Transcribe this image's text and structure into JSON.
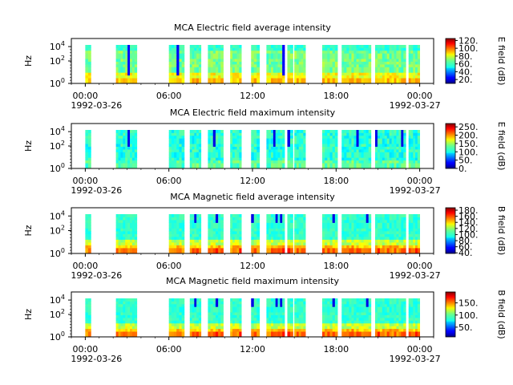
{
  "chart_data": [
    {
      "type": "heatmap",
      "title": "MCA  Electric field average intensity",
      "ylabel": "Hz",
      "y_ticks": [
        "10^0",
        "10^2",
        "10^4"
      ],
      "x_ticks": [
        "00:00",
        "06:00",
        "12:00",
        "18:00",
        "00:00"
      ],
      "x_start_date": "1992-03-26",
      "x_end_date": "1992-03-27",
      "colorbar_label": "E field (dB)",
      "colorbar_ticks": [
        "20.",
        "40.",
        "60.",
        "80.",
        "100.",
        "120."
      ],
      "colorbar_range": [
        10,
        125
      ],
      "intensity_profile": "hf-low-mid",
      "data_segments_hours": [
        [
          0.0,
          0.4
        ],
        [
          2.2,
          3.7
        ],
        [
          6.0,
          7.1
        ],
        [
          7.5,
          8.3
        ],
        [
          8.8,
          9.9
        ],
        [
          10.4,
          11.2
        ],
        [
          11.9,
          12.5
        ],
        [
          13.0,
          14.3
        ],
        [
          14.5,
          14.9
        ],
        [
          15.0,
          15.8
        ],
        [
          17.0,
          18.1
        ],
        [
          18.4,
          20.5
        ],
        [
          20.8,
          23.0
        ],
        [
          23.2,
          24.0
        ]
      ]
    },
    {
      "type": "heatmap",
      "title": "MCA  Electric field maximum intensity",
      "ylabel": "Hz",
      "y_ticks": [
        "10^0",
        "10^2",
        "10^4"
      ],
      "x_ticks": [
        "00:00",
        "06:00",
        "12:00",
        "18:00",
        "00:00"
      ],
      "x_start_date": "1992-03-26",
      "x_end_date": "1992-03-27",
      "colorbar_label": "E field (dB)",
      "colorbar_ticks": [
        "0.",
        "50.",
        "100.",
        "150.",
        "200.",
        "250."
      ],
      "colorbar_range": [
        0,
        270
      ],
      "intensity_profile": "hf-max",
      "data_segments_hours": [
        [
          0.0,
          0.4
        ],
        [
          2.2,
          3.7
        ],
        [
          6.0,
          7.1
        ],
        [
          7.5,
          8.3
        ],
        [
          8.8,
          9.9
        ],
        [
          10.4,
          11.2
        ],
        [
          11.9,
          12.5
        ],
        [
          13.0,
          14.3
        ],
        [
          14.5,
          14.9
        ],
        [
          15.0,
          15.8
        ],
        [
          17.0,
          18.1
        ],
        [
          18.4,
          20.5
        ],
        [
          20.8,
          23.0
        ],
        [
          23.2,
          24.0
        ]
      ]
    },
    {
      "type": "heatmap",
      "title": "MCA  Magnetic field average intensity",
      "ylabel": "Hz",
      "y_ticks": [
        "10^0",
        "10^2",
        "10^4"
      ],
      "x_ticks": [
        "00:00",
        "06:00",
        "12:00",
        "18:00",
        "00:00"
      ],
      "x_start_date": "1992-03-26",
      "x_end_date": "1992-03-27",
      "colorbar_label": "B field (dB)",
      "colorbar_ticks": [
        "40.",
        "60.",
        "80.",
        "100.",
        "120.",
        "140.",
        "160.",
        "180."
      ],
      "colorbar_range": [
        38,
        188
      ],
      "intensity_profile": "low-freq-strong",
      "data_segments_hours": [
        [
          0.0,
          0.4
        ],
        [
          2.2,
          3.7
        ],
        [
          6.0,
          7.1
        ],
        [
          7.5,
          8.3
        ],
        [
          8.8,
          9.9
        ],
        [
          10.4,
          11.2
        ],
        [
          11.9,
          12.5
        ],
        [
          13.0,
          14.3
        ],
        [
          14.5,
          14.9
        ],
        [
          15.0,
          15.8
        ],
        [
          17.0,
          18.1
        ],
        [
          18.4,
          20.5
        ],
        [
          20.8,
          23.0
        ],
        [
          23.2,
          24.0
        ]
      ]
    },
    {
      "type": "heatmap",
      "title": "MCA  Magnetic field maximum intensity",
      "ylabel": "Hz",
      "y_ticks": [
        "10^0",
        "10^2",
        "10^4"
      ],
      "x_ticks": [
        "00:00",
        "06:00",
        "12:00",
        "18:00",
        "00:00"
      ],
      "x_start_date": "1992-03-26",
      "x_end_date": "1992-03-27",
      "colorbar_label": "B field (dB)",
      "colorbar_ticks": [
        "50.",
        "100.",
        "150."
      ],
      "colorbar_range": [
        10,
        195
      ],
      "intensity_profile": "low-freq-strong",
      "data_segments_hours": [
        [
          0.0,
          0.4
        ],
        [
          2.2,
          3.7
        ],
        [
          6.0,
          7.1
        ],
        [
          7.5,
          8.3
        ],
        [
          8.8,
          9.9
        ],
        [
          10.4,
          11.2
        ],
        [
          11.9,
          12.5
        ],
        [
          13.0,
          14.3
        ],
        [
          14.5,
          14.9
        ],
        [
          15.0,
          15.8
        ],
        [
          17.0,
          18.1
        ],
        [
          18.4,
          20.5
        ],
        [
          20.8,
          23.0
        ],
        [
          23.2,
          24.0
        ]
      ]
    }
  ]
}
